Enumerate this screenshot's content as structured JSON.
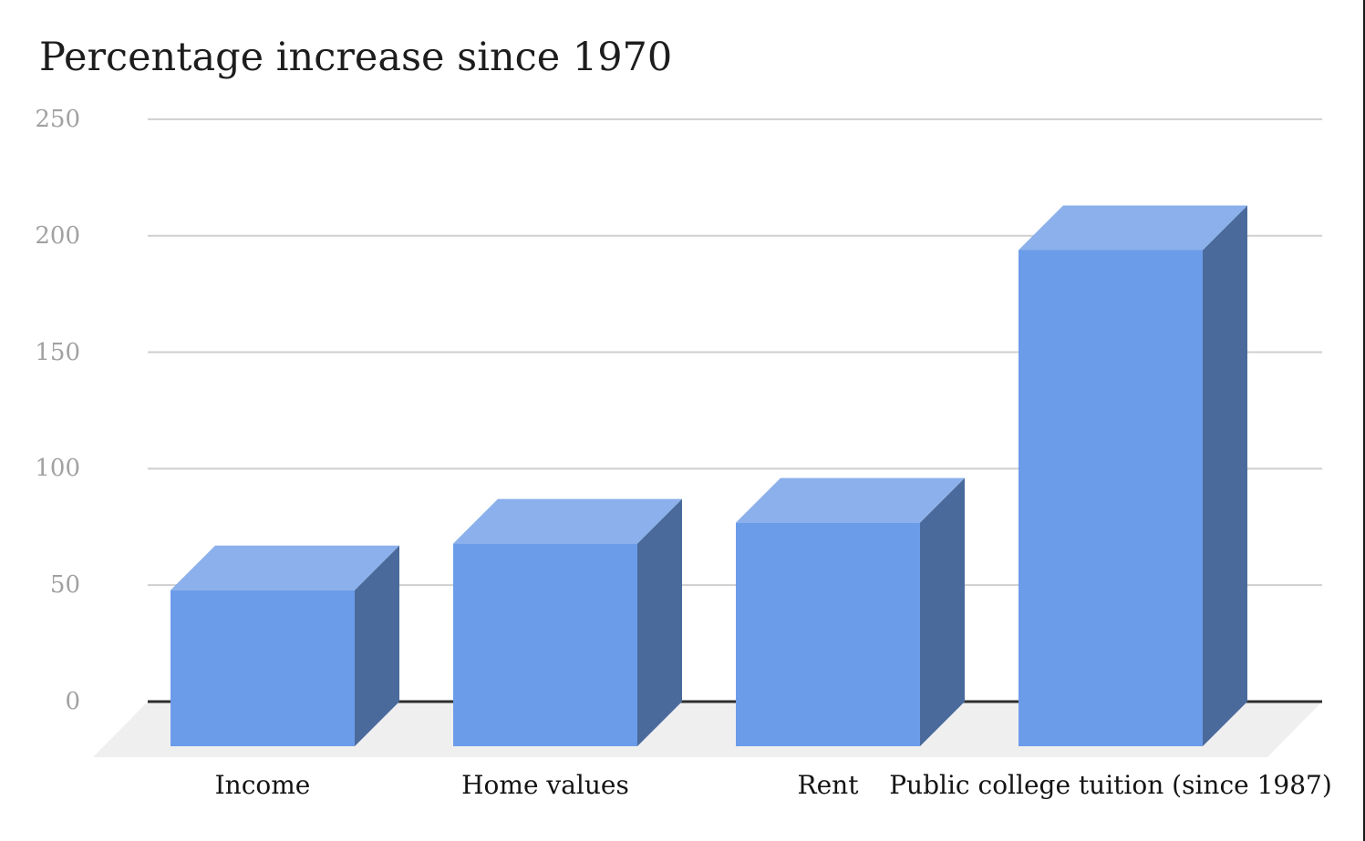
{
  "title": "Percentage increase since 1970",
  "chart_data": {
    "type": "bar",
    "style": "3d-column",
    "title": "Percentage increase since 1970",
    "categories": [
      "Income",
      "Home values",
      "Rent",
      "Public college tuition (since 1987)"
    ],
    "values": [
      67,
      87,
      96,
      213
    ],
    "unit": "percent",
    "xlabel": "",
    "ylabel": "",
    "ylim": [
      0,
      250
    ],
    "yticks": [
      0,
      50,
      100,
      150,
      200,
      250
    ],
    "grid": true,
    "legend": false,
    "colors": {
      "bar_front": "#6b9ce9",
      "bar_top": "#8bb0ec",
      "bar_side": "#4a6a9c",
      "floor": "#efefef",
      "gridline": "#cfcfcf",
      "baseline": "#2e2e2e",
      "tick_label": "#a1a1a1",
      "category_label": "#141414",
      "title_text": "#1d1d1d",
      "background": "#ffffff",
      "right_edge_border": "#1a1a1a"
    }
  }
}
